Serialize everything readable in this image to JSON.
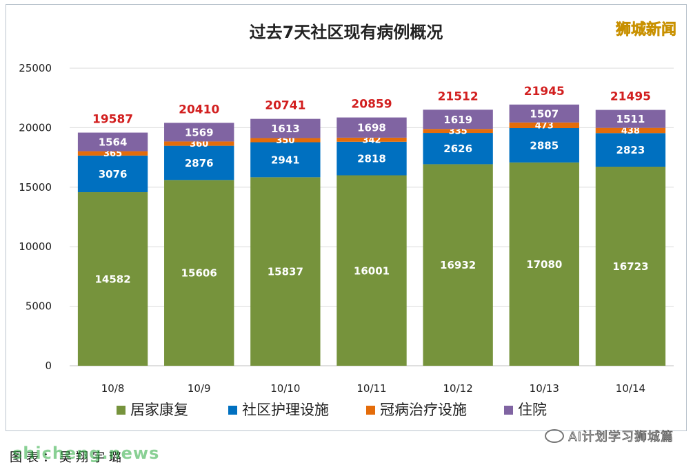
{
  "brand": "狮城新闻",
  "wechat_account": "AI计划学习狮城篇",
  "watermark": "shicheng.news",
  "source_text": "图表：吴翔宇璐",
  "colors": {
    "home_recovery": "#76933c",
    "community_care": "#0070c0",
    "covid_treatment": "#e46c0a",
    "hospital": "#8064a2",
    "total_label": "#d21f1f"
  },
  "chart_data": {
    "type": "bar",
    "stacked": true,
    "title": "过去7天社区现有病例概况",
    "xlabel": "",
    "ylabel": "",
    "ylim": [
      0,
      25000
    ],
    "yticks": [
      0,
      5000,
      10000,
      15000,
      20000,
      25000
    ],
    "grid": true,
    "legend_position": "bottom",
    "categories": [
      "10/8",
      "10/9",
      "10/10",
      "10/11",
      "10/12",
      "10/13",
      "10/14"
    ],
    "series": [
      {
        "name": "居家康复",
        "color": "#76933c",
        "values": [
          14582,
          15606,
          15837,
          16001,
          16932,
          17080,
          16723
        ]
      },
      {
        "name": "社区护理设施",
        "color": "#0070c0",
        "values": [
          3076,
          2876,
          2941,
          2818,
          2626,
          2885,
          2823
        ]
      },
      {
        "name": "冠病治疗设施",
        "color": "#e46c0a",
        "values": [
          365,
          360,
          350,
          342,
          335,
          473,
          438
        ]
      },
      {
        "name": "住院",
        "color": "#8064a2",
        "values": [
          1564,
          1569,
          1613,
          1698,
          1619,
          1507,
          1511
        ]
      }
    ],
    "totals": [
      19587,
      20410,
      20741,
      20859,
      21512,
      21945,
      21495
    ]
  }
}
